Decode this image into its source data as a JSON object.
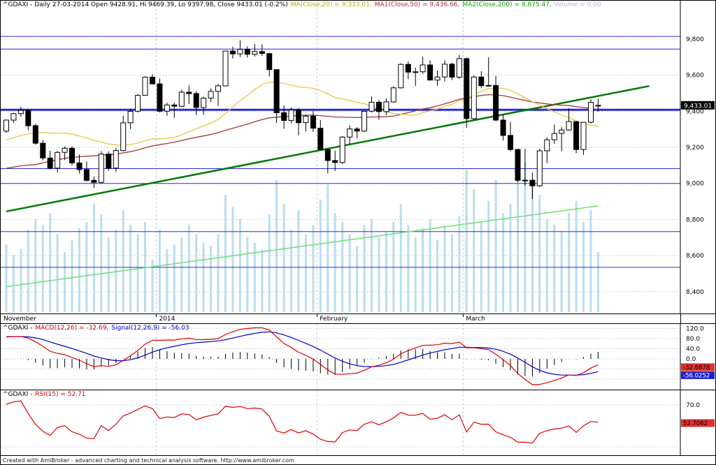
{
  "titles": {
    "price": {
      "base": "^GDAXI - Daily 27-03-2014 Open 9428.91, Hi 9469.39, Lo 9397.98, Close 9433.01 (-0.2%)",
      "ma20": "MA(Close,20) = 9,333.01,",
      "ma50": "MA1(Close,50) = 9,436.66,",
      "ma200": "MA2(Close,200) = 8,875.47,",
      "volume": "Volume = 0.00"
    },
    "macd": {
      "base": "^GDAXI -",
      "macd": "MACD(12,26) = -32.69,",
      "signal": "Signal(12,26,9) = -56.03"
    },
    "rsi": {
      "base": "^GDAXI -",
      "rsi": "RSI(15) = 52.71"
    }
  },
  "footer": {
    "text": "Created with AmiBroker - advanced charting and technical analysis software. http://www.amibroker.com"
  },
  "colors": {
    "up_candle": "#ffffff",
    "down_candle": "#000000",
    "candle_outline": "#000000",
    "ma20": "#e8c73d",
    "ma50": "#a03838",
    "ma200": "#6ee06e",
    "trendline": "#007a00",
    "volume": "#b9ddf1",
    "sr_line": "#2b2bd4",
    "macd": "#dd0000",
    "signal": "#0000cc",
    "rsi": "#dd0000",
    "grid": "#a8aec4",
    "month_line": "#b9cfe6",
    "last_price_bg": "#000000",
    "box_red": "#e03030",
    "box_blue": "#2222cc"
  },
  "chart_data": [
    {
      "type": "candlestick",
      "symbol": "^GDAXI",
      "interval": "Daily",
      "date": "27-03-2014",
      "open": 9428.91,
      "high": 9469.39,
      "low": 9397.98,
      "close": 9433.01,
      "change_pct": "-0.2%",
      "ma20_value": 9333.01,
      "ma50_value": 9436.66,
      "ma200_value": 8875.47,
      "volume_value": 0.0,
      "last_price_label": "9,433.01",
      "y_ticks": [
        {
          "v": 9800,
          "label": "9,800"
        },
        {
          "v": 9600,
          "label": "9,600"
        },
        {
          "v": 9400,
          "label": "9,400"
        },
        {
          "v": 9200,
          "label": "9,200"
        },
        {
          "v": 9000,
          "label": "9,000"
        },
        {
          "v": 8800,
          "label": "8,800"
        },
        {
          "v": 8600,
          "label": "8,600"
        },
        {
          "v": 8400,
          "label": "8,400"
        }
      ],
      "x_labels": [
        {
          "label": "November",
          "bar": 0,
          "line": false
        },
        {
          "label": "2014",
          "bar": 21,
          "line": true
        },
        {
          "label": "February",
          "bar": 43,
          "line": true
        },
        {
          "label": "March",
          "bar": 63,
          "line": true
        }
      ],
      "support_resistance": [
        {
          "price": 9815
        },
        {
          "price": 9745
        },
        {
          "price": 9408,
          "emphasis": true
        },
        {
          "price": 9082
        },
        {
          "price": 9000
        },
        {
          "price": 8733
        },
        {
          "price": 8535
        }
      ],
      "trendline": {
        "bar1": 0,
        "price1": 8845,
        "bar2": 88,
        "price2": 9540
      },
      "ma200_line": {
        "start": 8428,
        "end": 8875.47
      },
      "ohlc": [
        [
          9290,
          9355,
          9280,
          9351
        ],
        [
          9351,
          9392,
          9335,
          9387
        ],
        [
          9387,
          9424,
          9370,
          9405
        ],
        [
          9405,
          9412,
          9295,
          9320
        ],
        [
          9320,
          9332,
          9215,
          9223
        ],
        [
          9223,
          9240,
          9128,
          9141
        ],
        [
          9141,
          9182,
          9077,
          9085
        ],
        [
          9085,
          9180,
          9060,
          9172
        ],
        [
          9172,
          9205,
          9130,
          9195
        ],
        [
          9195,
          9207,
          9100,
          9114
        ],
        [
          9114,
          9160,
          9055,
          9077
        ],
        [
          9077,
          9122,
          9010,
          9017
        ],
        [
          9017,
          9038,
          8975,
          9006
        ],
        [
          9006,
          9180,
          9000,
          9163
        ],
        [
          9163,
          9178,
          9070,
          9085
        ],
        [
          9085,
          9196,
          9062,
          9182
        ],
        [
          9182,
          9375,
          9178,
          9336
        ],
        [
          9336,
          9415,
          9301,
          9400
        ],
        [
          9400,
          9495,
          9393,
          9488
        ],
        [
          9488,
          9594,
          9485,
          9589
        ],
        [
          9589,
          9605,
          9548,
          9552
        ],
        [
          9552,
          9581,
          9393,
          9400
        ],
        [
          9400,
          9447,
          9375,
          9435
        ],
        [
          9435,
          9448,
          9364,
          9428
        ],
        [
          9428,
          9520,
          9424,
          9506
        ],
        [
          9506,
          9544,
          9440,
          9498
        ],
        [
          9498,
          9512,
          9379,
          9421
        ],
        [
          9421,
          9481,
          9380,
          9473
        ],
        [
          9473,
          9527,
          9450,
          9510
        ],
        [
          9510,
          9552,
          9430,
          9541
        ],
        [
          9541,
          9736,
          9538,
          9734
        ],
        [
          9734,
          9758,
          9692,
          9718
        ],
        [
          9718,
          9794,
          9700,
          9743
        ],
        [
          9743,
          9759,
          9698,
          9716
        ],
        [
          9716,
          9772,
          9703,
          9731
        ],
        [
          9731,
          9771,
          9708,
          9720
        ],
        [
          9720,
          9724,
          9593,
          9631
        ],
        [
          9631,
          9633,
          9334,
          9392
        ],
        [
          9392,
          9432,
          9303,
          9349
        ],
        [
          9349,
          9422,
          9334,
          9407
        ],
        [
          9407,
          9417,
          9268,
          9337
        ],
        [
          9337,
          9382,
          9288,
          9373
        ],
        [
          9373,
          9401,
          9285,
          9306
        ],
        [
          9306,
          9352,
          9184,
          9187
        ],
        [
          9187,
          9192,
          9056,
          9127
        ],
        [
          9127,
          9182,
          9068,
          9116
        ],
        [
          9116,
          9262,
          9108,
          9257
        ],
        [
          9257,
          9322,
          9218,
          9302
        ],
        [
          9302,
          9312,
          9250,
          9290
        ],
        [
          9290,
          9402,
          9284,
          9400
        ],
        [
          9400,
          9482,
          9393,
          9450
        ],
        [
          9450,
          9462,
          9354,
          9398
        ],
        [
          9398,
          9472,
          9378,
          9452
        ],
        [
          9452,
          9538,
          9448,
          9530
        ],
        [
          9530,
          9666,
          9526,
          9660
        ],
        [
          9660,
          9676,
          9578,
          9617
        ],
        [
          9617,
          9642,
          9540,
          9619
        ],
        [
          9619,
          9702,
          9608,
          9657
        ],
        [
          9657,
          9682,
          9571,
          9573
        ],
        [
          9573,
          9626,
          9541,
          9590
        ],
        [
          9590,
          9682,
          9566,
          9661
        ],
        [
          9661,
          9669,
          9573,
          9589
        ],
        [
          9589,
          9712,
          9578,
          9692
        ],
        [
          9692,
          9698,
          9307,
          9359
        ],
        [
          9359,
          9598,
          9352,
          9590
        ],
        [
          9590,
          9622,
          9528,
          9542
        ],
        [
          9542,
          9699,
          9538,
          9543
        ],
        [
          9543,
          9596,
          9345,
          9351
        ],
        [
          9351,
          9382,
          9238,
          9266
        ],
        [
          9266,
          9342,
          9178,
          9188
        ],
        [
          9188,
          9192,
          9008,
          9017
        ],
        [
          9017,
          9192,
          8988,
          9018
        ],
        [
          9018,
          9060,
          8913,
          8987
        ],
        [
          8987,
          9192,
          8980,
          9181
        ],
        [
          9181,
          9255,
          9113,
          9242
        ],
        [
          9242,
          9327,
          9219,
          9277
        ],
        [
          9277,
          9311,
          9179,
          9296
        ],
        [
          9296,
          9417,
          9293,
          9343
        ],
        [
          9343,
          9347,
          9167,
          9188
        ],
        [
          9188,
          9341,
          9159,
          9339
        ],
        [
          9339,
          9466,
          9333,
          9449
        ],
        [
          9428.91,
          9469.39,
          9397.98,
          9433.01
        ]
      ],
      "volumes_rel": [
        0.45,
        0.38,
        0.42,
        0.55,
        0.62,
        0.58,
        0.66,
        0.52,
        0.4,
        0.48,
        0.56,
        0.6,
        0.72,
        0.65,
        0.5,
        0.55,
        0.68,
        0.58,
        0.52,
        0.6,
        0.35,
        0.55,
        0.42,
        0.45,
        0.5,
        0.58,
        0.52,
        0.46,
        0.44,
        0.52,
        0.78,
        0.7,
        0.62,
        0.5,
        0.46,
        0.42,
        0.65,
        0.88,
        0.72,
        0.55,
        0.68,
        0.52,
        0.58,
        0.75,
        0.85,
        0.66,
        0.6,
        0.52,
        0.44,
        0.58,
        0.62,
        0.5,
        0.54,
        0.6,
        0.72,
        0.58,
        0.5,
        0.56,
        0.62,
        0.48,
        0.58,
        0.52,
        0.64,
        0.95,
        0.82,
        0.6,
        0.74,
        0.88,
        0.66,
        0.72,
        0.9,
        1.0,
        0.85,
        0.78,
        0.62,
        0.58,
        0.54,
        0.66,
        0.74,
        0.6,
        0.68,
        0.4
      ],
      "warmup_closes": [
        8620,
        8680,
        8740,
        8795,
        8850,
        8905,
        8865,
        8915,
        8955,
        9000,
        8970,
        9020,
        9055,
        9010,
        8985,
        9035,
        9065,
        9095,
        9070,
        9040,
        9008,
        9036,
        9080,
        9108,
        9040,
        9088,
        9150,
        9170,
        9149,
        9076,
        9115,
        9150,
        9193,
        9202,
        9225,
        9254,
        9243,
        9291,
        9336,
        9301,
        9290,
        9335,
        9350,
        9322,
        9335
      ]
    },
    {
      "type": "line",
      "name": "MACD",
      "params": "12,26",
      "macd_value": -32.69,
      "signal_value": -56.03,
      "grid": [
        120,
        80,
        40,
        0,
        -40,
        -80
      ],
      "y_ticks": [
        {
          "v": 120,
          "label": "120.0"
        },
        {
          "v": 80,
          "label": "80.0"
        },
        {
          "v": 40,
          "label": "40.0"
        },
        {
          "v": 0,
          "label": "0.0"
        }
      ],
      "boxes": [
        {
          "label": "-32.6878",
          "style": "red"
        },
        {
          "label": "-56.0252",
          "style": "blue"
        }
      ]
    },
    {
      "type": "line",
      "name": "RSI",
      "params": "15",
      "rsi_value": 52.71,
      "grid": [
        70,
        30
      ],
      "y_ticks": [
        {
          "v": 70,
          "label": "70.0"
        }
      ],
      "boxes": [
        {
          "label": "52.7062",
          "style": "red"
        }
      ]
    }
  ]
}
